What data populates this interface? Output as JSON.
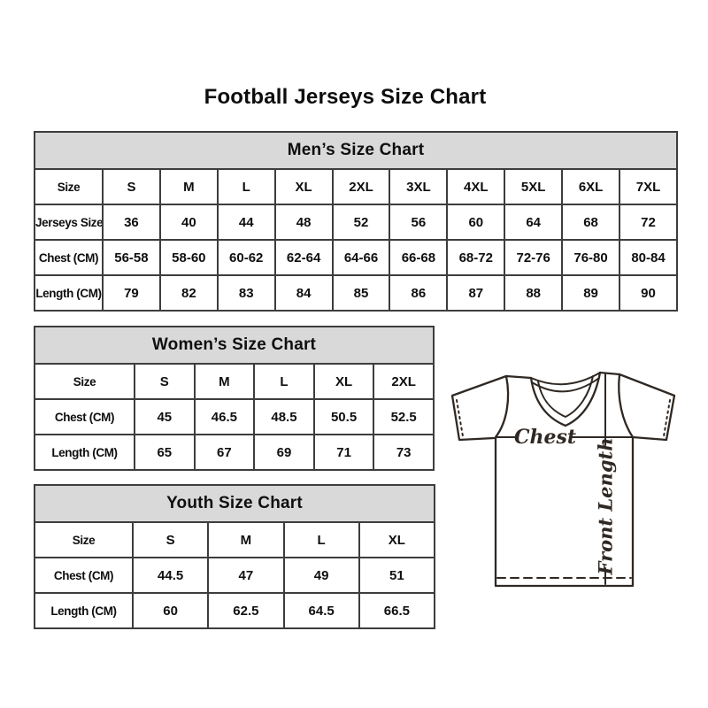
{
  "page": {
    "title": "Football Jerseys Size Chart"
  },
  "colors": {
    "header_bg": "#d9d9d9",
    "table_border": "#3d3d3d",
    "text": "#0f0f0f",
    "diagram_line": "#2f2823"
  },
  "tables": {
    "mens": {
      "title": "Men’s Size Chart",
      "header": [
        "Size",
        "S",
        "M",
        "L",
        "XL",
        "2XL",
        "3XL",
        "4XL",
        "5XL",
        "6XL",
        "7XL"
      ],
      "rows": [
        [
          "Jerseys Size",
          "36",
          "40",
          "44",
          "48",
          "52",
          "56",
          "60",
          "64",
          "68",
          "72"
        ],
        [
          "Chest (CM)",
          "56-58",
          "58-60",
          "60-62",
          "62-64",
          "64-66",
          "66-68",
          "68-72",
          "72-76",
          "76-80",
          "80-84"
        ],
        [
          "Length (CM)",
          "79",
          "82",
          "83",
          "84",
          "85",
          "86",
          "87",
          "88",
          "89",
          "90"
        ]
      ]
    },
    "womens": {
      "title": "Women’s Size Chart",
      "header": [
        "Size",
        "S",
        "M",
        "L",
        "XL",
        "2XL"
      ],
      "rows": [
        [
          "Chest (CM)",
          "45",
          "46.5",
          "48.5",
          "50.5",
          "52.5"
        ],
        [
          "Length (CM)",
          "65",
          "67",
          "69",
          "71",
          "73"
        ]
      ]
    },
    "youth": {
      "title": "Youth Size Chart",
      "header": [
        "Size",
        "S",
        "M",
        "L",
        "XL"
      ],
      "rows": [
        [
          "Chest (CM)",
          "44.5",
          "47",
          "49",
          "51"
        ],
        [
          "Length (CM)",
          "60",
          "62.5",
          "64.5",
          "66.5"
        ]
      ]
    }
  },
  "diagram": {
    "chest_label": "Chest",
    "front_length_label": "Front Length"
  }
}
